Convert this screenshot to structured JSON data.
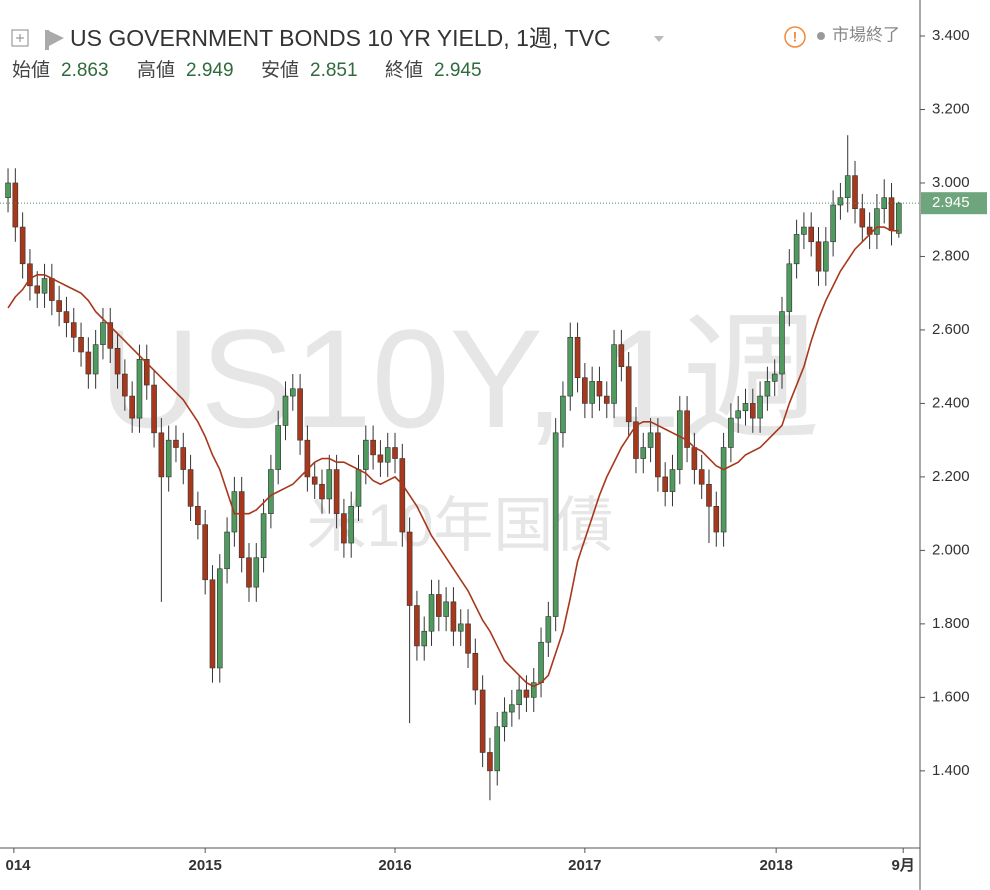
{
  "chart_data": {
    "type": "candlestick",
    "title": "US GOVERNMENT BONDS 10 YR YIELD, 1週, TVC",
    "status": "市場終了",
    "watermark": "US10Y, 1週",
    "watermark_subtitle": "米10年国債",
    "ohlc_labels": [
      "始値",
      "高値",
      "安値",
      "終値"
    ],
    "up_color": "#4e9a5f",
    "down_color": "#a8381c",
    "open": [
      2.96,
      3.0,
      2.88,
      2.78,
      2.72,
      2.7,
      2.74,
      2.68,
      2.65,
      2.62,
      2.58,
      2.54,
      2.48,
      2.56,
      2.62,
      2.55,
      2.48,
      2.42,
      2.36,
      2.52,
      2.45,
      2.32,
      2.2,
      2.3,
      2.28,
      2.22,
      2.12,
      2.07,
      1.92,
      1.68,
      1.95,
      2.05,
      2.16,
      1.98,
      1.9,
      1.98,
      2.1,
      2.22,
      2.34,
      2.42,
      2.44,
      2.3,
      2.2,
      2.18,
      2.14,
      2.22,
      2.1,
      2.02,
      2.12,
      2.22,
      2.3,
      2.26,
      2.24,
      2.28,
      2.25,
      2.05,
      1.85,
      1.74,
      1.78,
      1.88,
      1.82,
      1.86,
      1.78,
      1.8,
      1.72,
      1.62,
      1.45,
      1.4,
      1.52,
      1.56,
      1.58,
      1.62,
      1.6,
      1.64,
      1.75,
      1.82,
      2.32,
      2.42,
      2.58,
      2.47,
      2.4,
      2.46,
      2.42,
      2.4,
      2.56,
      2.5,
      2.35,
      2.25,
      2.28,
      2.32,
      2.2,
      2.16,
      2.22,
      2.38,
      2.28,
      2.22,
      2.18,
      2.12,
      2.05,
      2.28,
      2.36,
      2.38,
      2.4,
      2.36,
      2.42,
      2.46,
      2.48,
      2.65,
      2.78,
      2.86,
      2.88,
      2.84,
      2.76,
      2.84,
      2.94,
      2.96,
      3.02,
      2.93,
      2.88,
      2.86,
      2.93,
      2.96,
      2.863
    ],
    "high": [
      3.04,
      3.04,
      2.92,
      2.82,
      2.76,
      2.78,
      2.78,
      2.72,
      2.69,
      2.66,
      2.62,
      2.58,
      2.6,
      2.66,
      2.66,
      2.59,
      2.52,
      2.46,
      2.56,
      2.56,
      2.49,
      2.36,
      2.34,
      2.34,
      2.32,
      2.26,
      2.16,
      2.11,
      1.96,
      1.99,
      2.09,
      2.2,
      2.2,
      2.02,
      2.02,
      2.14,
      2.26,
      2.38,
      2.46,
      2.48,
      2.48,
      2.34,
      2.24,
      2.22,
      2.26,
      2.26,
      2.14,
      2.16,
      2.26,
      2.34,
      2.34,
      2.3,
      2.32,
      2.32,
      2.29,
      2.09,
      1.89,
      1.82,
      1.92,
      1.92,
      1.9,
      1.9,
      1.84,
      1.84,
      1.76,
      1.66,
      1.49,
      1.56,
      1.6,
      1.62,
      1.66,
      1.66,
      1.68,
      1.79,
      1.86,
      2.36,
      2.46,
      2.62,
      2.62,
      2.51,
      2.5,
      2.5,
      2.46,
      2.6,
      2.6,
      2.54,
      2.39,
      2.32,
      2.36,
      2.36,
      2.24,
      2.26,
      2.42,
      2.42,
      2.32,
      2.26,
      2.22,
      2.16,
      2.32,
      2.4,
      2.42,
      2.44,
      2.44,
      2.46,
      2.5,
      2.52,
      2.69,
      2.82,
      2.9,
      2.92,
      2.92,
      2.88,
      2.88,
      2.98,
      3.0,
      3.13,
      3.06,
      2.97,
      2.92,
      2.97,
      3.01,
      3.0,
      2.949
    ],
    "low": [
      2.92,
      2.84,
      2.74,
      2.68,
      2.66,
      2.66,
      2.64,
      2.61,
      2.58,
      2.54,
      2.5,
      2.44,
      2.44,
      2.52,
      2.51,
      2.44,
      2.38,
      2.32,
      2.32,
      2.41,
      2.28,
      1.86,
      2.16,
      2.24,
      2.18,
      2.08,
      2.03,
      1.88,
      1.64,
      1.64,
      1.91,
      2.01,
      1.94,
      1.86,
      1.86,
      1.94,
      2.06,
      2.18,
      2.3,
      2.38,
      2.26,
      2.16,
      2.14,
      2.1,
      2.1,
      2.06,
      1.98,
      1.98,
      2.08,
      2.18,
      2.22,
      2.2,
      2.2,
      2.21,
      2.01,
      1.53,
      1.7,
      1.7,
      1.74,
      1.78,
      1.78,
      1.74,
      1.74,
      1.68,
      1.58,
      1.41,
      1.32,
      1.36,
      1.48,
      1.52,
      1.54,
      1.56,
      1.56,
      1.6,
      1.71,
      1.78,
      2.28,
      2.38,
      2.43,
      2.36,
      2.36,
      2.38,
      2.36,
      2.36,
      2.46,
      2.31,
      2.21,
      2.21,
      2.24,
      2.16,
      2.12,
      2.12,
      2.18,
      2.24,
      2.18,
      2.14,
      2.02,
      2.01,
      2.01,
      2.24,
      2.32,
      2.34,
      2.32,
      2.32,
      2.38,
      2.42,
      2.44,
      2.61,
      2.74,
      2.82,
      2.8,
      2.72,
      2.72,
      2.8,
      2.9,
      2.92,
      2.89,
      2.84,
      2.82,
      2.82,
      2.89,
      2.83,
      2.851
    ],
    "close": [
      3.0,
      2.88,
      2.78,
      2.72,
      2.7,
      2.74,
      2.68,
      2.65,
      2.62,
      2.58,
      2.54,
      2.48,
      2.56,
      2.62,
      2.55,
      2.48,
      2.42,
      2.36,
      2.52,
      2.45,
      2.32,
      2.2,
      2.3,
      2.28,
      2.22,
      2.12,
      2.07,
      1.92,
      1.68,
      1.95,
      2.05,
      2.16,
      1.98,
      1.9,
      1.98,
      2.1,
      2.22,
      2.34,
      2.42,
      2.44,
      2.3,
      2.2,
      2.18,
      2.14,
      2.22,
      2.1,
      2.02,
      2.12,
      2.22,
      2.3,
      2.26,
      2.24,
      2.28,
      2.25,
      2.05,
      1.85,
      1.74,
      1.78,
      1.88,
      1.82,
      1.86,
      1.78,
      1.8,
      1.72,
      1.62,
      1.45,
      1.4,
      1.52,
      1.56,
      1.58,
      1.62,
      1.6,
      1.64,
      1.75,
      1.82,
      2.32,
      2.42,
      2.58,
      2.47,
      2.4,
      2.46,
      2.42,
      2.4,
      2.56,
      2.5,
      2.35,
      2.25,
      2.28,
      2.32,
      2.2,
      2.16,
      2.22,
      2.38,
      2.28,
      2.22,
      2.18,
      2.12,
      2.05,
      2.28,
      2.36,
      2.38,
      2.4,
      2.36,
      2.42,
      2.46,
      2.48,
      2.65,
      2.78,
      2.86,
      2.88,
      2.84,
      2.76,
      2.84,
      2.94,
      2.96,
      3.02,
      2.93,
      2.88,
      2.86,
      2.93,
      2.96,
      2.87,
      2.945
    ],
    "moving_average": {
      "color": "#a8381c",
      "values": [
        2.66,
        2.69,
        2.71,
        2.74,
        2.75,
        2.75,
        2.74,
        2.73,
        2.72,
        2.71,
        2.7,
        2.68,
        2.65,
        2.63,
        2.61,
        2.59,
        2.57,
        2.55,
        2.53,
        2.51,
        2.49,
        2.47,
        2.45,
        2.43,
        2.41,
        2.38,
        2.35,
        2.31,
        2.26,
        2.22,
        2.16,
        2.1,
        2.1,
        2.1,
        2.11,
        2.13,
        2.15,
        2.16,
        2.17,
        2.18,
        2.2,
        2.22,
        2.24,
        2.25,
        2.25,
        2.24,
        2.24,
        2.23,
        2.22,
        2.21,
        2.19,
        2.18,
        2.19,
        2.2,
        2.18,
        2.15,
        2.12,
        2.08,
        2.04,
        2.01,
        1.98,
        1.95,
        1.92,
        1.89,
        1.85,
        1.81,
        1.78,
        1.74,
        1.7,
        1.68,
        1.66,
        1.64,
        1.63,
        1.64,
        1.66,
        1.72,
        1.78,
        1.87,
        1.97,
        2.03,
        2.09,
        2.15,
        2.2,
        2.24,
        2.28,
        2.31,
        2.34,
        2.35,
        2.35,
        2.34,
        2.33,
        2.32,
        2.31,
        2.3,
        2.28,
        2.27,
        2.25,
        2.23,
        2.22,
        2.23,
        2.24,
        2.26,
        2.27,
        2.28,
        2.3,
        2.32,
        2.34,
        2.4,
        2.45,
        2.5,
        2.57,
        2.63,
        2.68,
        2.72,
        2.76,
        2.79,
        2.82,
        2.84,
        2.86,
        2.88,
        2.88,
        2.87,
        2.87
      ]
    },
    "xlim": [
      -1.1,
      124.9
    ],
    "xticks": [
      {
        "value": 0.8,
        "label": "014"
      },
      {
        "value": 27,
        "label": "2015"
      },
      {
        "value": 53,
        "label": "2016"
      },
      {
        "value": 79,
        "label": "2017"
      },
      {
        "value": 105.2,
        "label": "2018"
      },
      {
        "value": 122.6,
        "label": "9月"
      }
    ],
    "ylim": [
      1.19,
      3.498
    ],
    "yticks": [
      {
        "value": 3.4,
        "label": "3.400"
      },
      {
        "value": 3.2,
        "label": "3.200"
      },
      {
        "value": 3.0,
        "label": "3.000"
      },
      {
        "value": 2.8,
        "label": "2.800"
      },
      {
        "value": 2.6,
        "label": "2.600"
      },
      {
        "value": 2.4,
        "label": "2.400"
      },
      {
        "value": 2.2,
        "label": "2.200"
      },
      {
        "value": 2.0,
        "label": "2.000"
      },
      {
        "value": 1.8,
        "label": "1.800"
      },
      {
        "value": 1.6,
        "label": "1.600"
      },
      {
        "value": 1.4,
        "label": "1.400"
      }
    ],
    "last_price_line": true
  }
}
